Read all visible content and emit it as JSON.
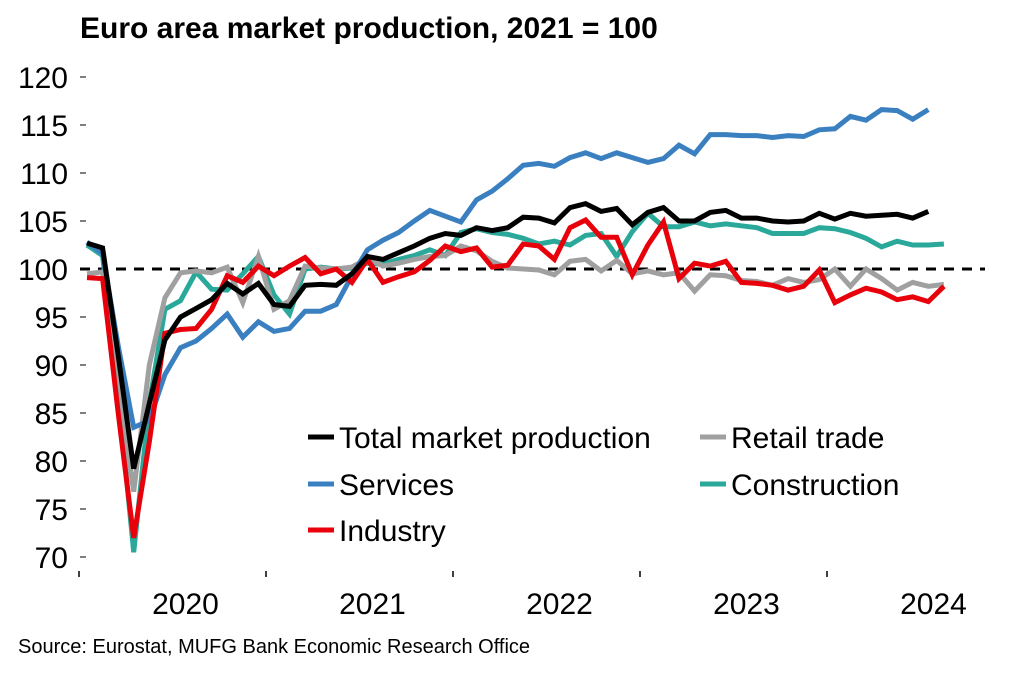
{
  "chart_data": {
    "type": "line",
    "title": "Euro area market production, 2021 = 100",
    "source": "Source: Eurostat, MUFG Bank Economic Research Office",
    "xlabel": "",
    "ylabel": "",
    "ylim": [
      70,
      120
    ],
    "yticks": [
      70,
      75,
      80,
      85,
      90,
      95,
      100,
      105,
      110,
      115,
      120
    ],
    "xticks": [
      "2020",
      "2021",
      "2022",
      "2023",
      "2024"
    ],
    "x_start": "2020-01",
    "frequency": "monthly",
    "reference_line": 100,
    "grid": false,
    "legend_position": "bottom-right inside plot",
    "series": [
      {
        "name": "Total market production",
        "color": "#000000",
        "values": [
          102.7,
          102.2,
          91.0,
          79.2,
          86.0,
          92.6,
          95.0,
          95.9,
          96.8,
          98.5,
          97.4,
          98.5,
          96.3,
          96.1,
          98.3,
          98.4,
          98.3,
          99.5,
          101.3,
          101.0,
          101.7,
          102.4,
          103.2,
          103.7,
          103.5,
          104.3,
          104.0,
          104.3,
          105.4,
          105.3,
          104.8,
          106.4,
          106.8,
          106.0,
          106.3,
          104.6,
          105.9,
          106.4,
          105.0,
          105.0,
          105.9,
          106.1,
          105.3,
          105.3,
          105.0,
          104.9,
          105.0,
          105.8,
          105.2,
          105.8,
          105.5,
          105.6,
          105.7,
          105.3,
          106.0
        ]
      },
      {
        "name": "Retail trade",
        "color": "#A0A0A0",
        "values": [
          99.5,
          99.7,
          88.0,
          76.8,
          90.0,
          97.0,
          99.6,
          99.8,
          99.6,
          100.2,
          96.5,
          101.3,
          95.8,
          96.7,
          100.3,
          100.1,
          100.0,
          100.2,
          101.1,
          100.3,
          100.6,
          101.0,
          101.3,
          101.4,
          102.4,
          101.9,
          100.8,
          100.1,
          100.0,
          99.9,
          99.4,
          100.8,
          101.0,
          99.8,
          100.9,
          99.5,
          99.8,
          99.4,
          99.6,
          97.7,
          99.4,
          99.3,
          98.8,
          98.7,
          98.3,
          99.0,
          98.6,
          98.9,
          100.0,
          98.2,
          100.0,
          99.0,
          97.8,
          98.6,
          98.2,
          98.4
        ]
      },
      {
        "name": "Services",
        "color": "#3A80C0",
        "values": [
          102.8,
          101.6,
          92.0,
          83.5,
          84.2,
          89.0,
          91.8,
          92.5,
          93.8,
          95.3,
          92.9,
          94.5,
          93.5,
          93.8,
          95.6,
          95.6,
          96.3,
          99.3,
          102.0,
          103.0,
          103.8,
          105.0,
          106.1,
          105.5,
          104.9,
          107.2,
          108.1,
          109.4,
          110.8,
          111.0,
          110.7,
          111.6,
          112.1,
          111.5,
          112.1,
          111.6,
          111.1,
          111.5,
          112.9,
          112.0,
          114.0,
          114.0,
          113.9,
          113.9,
          113.7,
          113.9,
          113.8,
          114.5,
          114.6,
          115.9,
          115.5,
          116.6,
          116.5,
          115.6,
          116.6
        ]
      },
      {
        "name": "Construction",
        "color": "#2AA89A",
        "values": [
          102.5,
          101.4,
          87.0,
          70.5,
          86.0,
          95.8,
          96.7,
          99.7,
          97.9,
          97.8,
          99.5,
          101.3,
          97.3,
          95.3,
          100.0,
          100.2,
          100.0,
          100.1,
          100.6,
          100.5,
          101.0,
          101.4,
          102.0,
          101.4,
          103.8,
          104.2,
          103.8,
          103.6,
          103.2,
          102.6,
          102.9,
          102.5,
          103.5,
          103.7,
          101.3,
          103.9,
          105.8,
          104.4,
          104.4,
          104.9,
          104.5,
          104.7,
          104.5,
          104.3,
          103.7,
          103.7,
          103.7,
          104.3,
          104.2,
          103.8,
          103.2,
          102.3,
          102.9,
          102.5,
          102.5,
          102.6
        ]
      },
      {
        "name": "Industry",
        "color": "#E8000B",
        "values": [
          99.1,
          99.0,
          85.0,
          72.0,
          82.0,
          93.3,
          93.7,
          93.8,
          95.8,
          99.3,
          98.6,
          100.3,
          99.3,
          100.3,
          101.2,
          99.5,
          100.0,
          98.6,
          101.0,
          98.6,
          99.2,
          99.7,
          100.9,
          102.4,
          101.8,
          102.2,
          100.2,
          100.4,
          102.6,
          102.4,
          101.0,
          104.3,
          105.1,
          103.3,
          103.3,
          99.4,
          102.5,
          104.9,
          99.0,
          100.6,
          100.3,
          100.8,
          98.6,
          98.5,
          98.3,
          97.8,
          98.2,
          99.9,
          96.5,
          97.3,
          98.0,
          97.6,
          96.8,
          97.1,
          96.6,
          98.2
        ]
      }
    ],
    "legend": [
      {
        "name": "Total market production",
        "color": "#000000"
      },
      {
        "name": "Retail trade",
        "color": "#A0A0A0"
      },
      {
        "name": "Services",
        "color": "#3A80C0"
      },
      {
        "name": "Construction",
        "color": "#2AA89A"
      },
      {
        "name": "Industry",
        "color": "#E8000B"
      }
    ]
  }
}
